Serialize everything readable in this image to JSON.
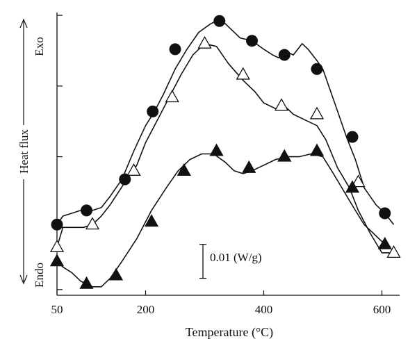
{
  "chart_data": {
    "type": "line",
    "xlabel": "Temperature (°C)",
    "ylabel": "Heat flux",
    "ylabel_top": "Exo",
    "ylabel_bottom": "Endo",
    "xlim": [
      50,
      630
    ],
    "ylim": [
      0,
      1
    ],
    "x_ticks": [
      50,
      200,
      400,
      600
    ],
    "y_ticks": [
      0.02,
      0.24,
      0.49,
      0.74,
      0.99
    ],
    "scale_bar_label": "0.01 (W/g)",
    "scale_bar_range": [
      0.06,
      0.18
    ],
    "grid": false,
    "legend": "none",
    "series": [
      {
        "marker": "filled-circle",
        "color": "#111111",
        "x": [
          50,
          60,
          75,
          90,
          100,
          110,
          125,
          140,
          160,
          180,
          200,
          215,
          230,
          250,
          270,
          290,
          310,
          320,
          330,
          345,
          360,
          380,
          400,
          415,
          425,
          440,
          450,
          465,
          475,
          490,
          500,
          510,
          525,
          540,
          555,
          570,
          590,
          605,
          620
        ],
        "y": [
          0.25,
          0.28,
          0.29,
          0.3,
          0.3,
          0.3,
          0.31,
          0.35,
          0.41,
          0.51,
          0.6,
          0.65,
          0.71,
          0.8,
          0.87,
          0.93,
          0.96,
          0.97,
          0.97,
          0.94,
          0.91,
          0.9,
          0.87,
          0.85,
          0.84,
          0.86,
          0.85,
          0.89,
          0.87,
          0.83,
          0.8,
          0.74,
          0.65,
          0.56,
          0.48,
          0.38,
          0.32,
          0.29,
          0.25
        ]
      },
      {
        "marker": "open-triangle",
        "color": "#111111",
        "x": [
          50,
          60,
          75,
          95,
          110,
          125,
          140,
          165,
          185,
          200,
          220,
          240,
          260,
          280,
          300,
          320,
          340,
          365,
          385,
          400,
          420,
          435,
          450,
          470,
          490,
          505,
          525,
          545,
          560,
          580,
          600,
          620
        ],
        "y": [
          0.17,
          0.24,
          0.24,
          0.24,
          0.25,
          0.28,
          0.32,
          0.4,
          0.46,
          0.54,
          0.62,
          0.7,
          0.78,
          0.85,
          0.89,
          0.88,
          0.82,
          0.76,
          0.72,
          0.68,
          0.66,
          0.67,
          0.64,
          0.62,
          0.6,
          0.55,
          0.45,
          0.38,
          0.3,
          0.22,
          0.15,
          0.15
        ]
      },
      {
        "marker": "filled-triangle",
        "color": "#111111",
        "x": [
          50,
          60,
          75,
          90,
          100,
          110,
          125,
          140,
          160,
          185,
          210,
          235,
          255,
          275,
          295,
          315,
          335,
          350,
          365,
          380,
          400,
          420,
          440,
          460,
          480,
          500,
          515,
          535,
          555,
          570,
          590,
          605,
          615
        ],
        "y": [
          0.12,
          0.1,
          0.08,
          0.05,
          0.04,
          0.03,
          0.03,
          0.06,
          0.12,
          0.2,
          0.3,
          0.38,
          0.44,
          0.48,
          0.5,
          0.5,
          0.47,
          0.44,
          0.43,
          0.44,
          0.46,
          0.48,
          0.49,
          0.49,
          0.5,
          0.49,
          0.44,
          0.37,
          0.3,
          0.25,
          0.21,
          0.18,
          0.17
        ]
      }
    ],
    "markers": [
      {
        "series": 0,
        "points": [
          [
            50,
            0.25
          ],
          [
            100,
            0.3
          ],
          [
            165,
            0.41
          ],
          [
            212,
            0.65
          ],
          [
            250,
            0.87
          ],
          [
            325,
            0.97
          ],
          [
            380,
            0.9
          ],
          [
            435,
            0.85
          ],
          [
            490,
            0.8
          ],
          [
            550,
            0.56
          ],
          [
            605,
            0.29
          ]
        ]
      },
      {
        "series": 1,
        "points": [
          [
            50,
            0.17
          ],
          [
            110,
            0.25
          ],
          [
            180,
            0.44
          ],
          [
            245,
            0.7
          ],
          [
            300,
            0.89
          ],
          [
            365,
            0.78
          ],
          [
            430,
            0.67
          ],
          [
            490,
            0.64
          ],
          [
            560,
            0.4
          ],
          [
            620,
            0.15
          ]
        ]
      },
      {
        "series": 2,
        "points": [
          [
            50,
            0.12
          ],
          [
            100,
            0.04
          ],
          [
            150,
            0.07
          ],
          [
            210,
            0.26
          ],
          [
            265,
            0.44
          ],
          [
            320,
            0.51
          ],
          [
            375,
            0.45
          ],
          [
            435,
            0.49
          ],
          [
            490,
            0.51
          ],
          [
            550,
            0.38
          ],
          [
            605,
            0.18
          ]
        ]
      }
    ]
  }
}
